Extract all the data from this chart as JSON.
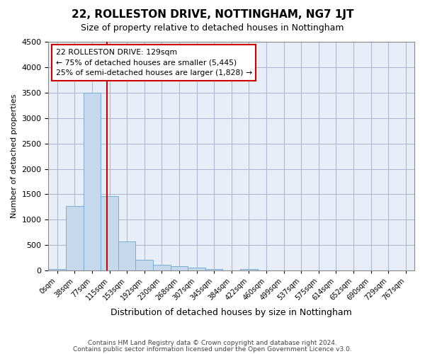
{
  "title": "22, ROLLESTON DRIVE, NOTTINGHAM, NG7 1JT",
  "subtitle": "Size of property relative to detached houses in Nottingham",
  "xlabel": "Distribution of detached houses by size in Nottingham",
  "ylabel": "Number of detached properties",
  "footnote1": "Contains HM Land Registry data © Crown copyright and database right 2024.",
  "footnote2": "Contains public sector information licensed under the Open Government Licence v3.0.",
  "bin_labels": [
    "0sqm",
    "38sqm",
    "77sqm",
    "115sqm",
    "153sqm",
    "192sqm",
    "230sqm",
    "268sqm",
    "307sqm",
    "345sqm",
    "384sqm",
    "422sqm",
    "460sqm",
    "499sqm",
    "537sqm",
    "575sqm",
    "614sqm",
    "652sqm",
    "690sqm",
    "729sqm",
    "767sqm"
  ],
  "bar_values": [
    30,
    1270,
    3500,
    1460,
    570,
    210,
    110,
    80,
    55,
    30,
    0,
    30,
    0,
    0,
    0,
    0,
    0,
    0,
    0,
    0,
    0
  ],
  "bar_color": "#c5d8ec",
  "bar_edge_color": "#7aadd4",
  "grid_color": "#b0b8d0",
  "background_color": "#e8eef8",
  "vline_color": "#cc0000",
  "annotation_text": "22 ROLLESTON DRIVE: 129sqm\n← 75% of detached houses are smaller (5,445)\n25% of semi-detached houses are larger (1,828) →",
  "annotation_box_color": "#ffffff",
  "annotation_border_color": "#cc0000",
  "ylim": [
    0,
    4500
  ],
  "yticks": [
    0,
    500,
    1000,
    1500,
    2000,
    2500,
    3000,
    3500,
    4000,
    4500
  ],
  "property_sqm": 129,
  "bin_edges": [
    0,
    38,
    77,
    115,
    153,
    192,
    230,
    268,
    307,
    345,
    384,
    422,
    460,
    499,
    537,
    575,
    614,
    652,
    690,
    729,
    767
  ]
}
